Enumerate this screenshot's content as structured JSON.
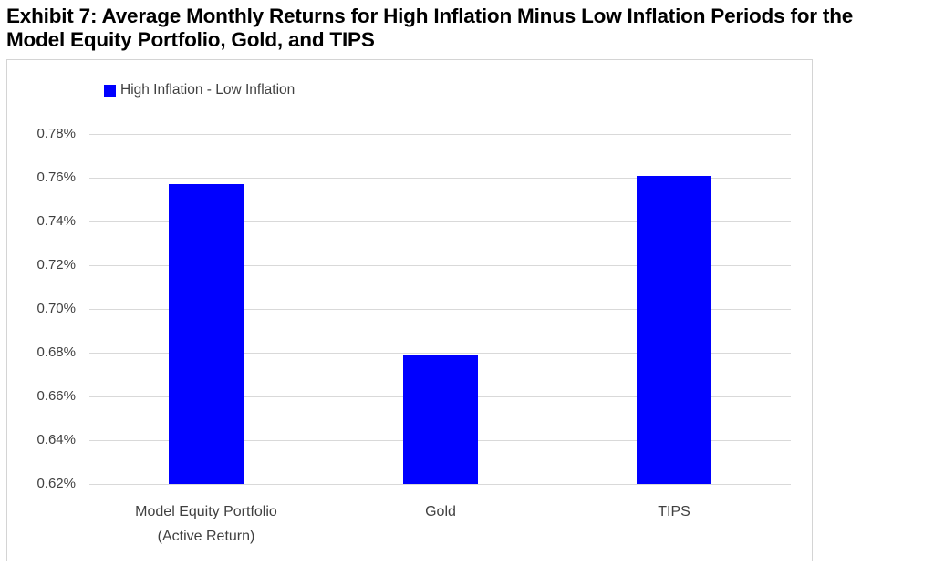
{
  "title_lines": [
    "Exhibit 7: Average Monthly Returns for High Inflation Minus Low Inflation Periods for the",
    "Model Equity Portfolio, Gold, and TIPS"
  ],
  "chart_data": {
    "type": "bar",
    "title": "Exhibit 7: Average Monthly Returns for High Inflation Minus Low Inflation Periods for the Model Equity Portfolio, Gold, and TIPS",
    "legend": [
      "High Inflation - Low Inflation"
    ],
    "legend_position": "top-left-inside",
    "categories": [
      "Model Equity Portfolio (Active Return)",
      "Gold",
      "TIPS"
    ],
    "category_lines": [
      [
        "Model Equity Portfolio",
        "(Active Return)"
      ],
      [
        "Gold"
      ],
      [
        "TIPS"
      ]
    ],
    "values_pct": [
      0.757,
      0.679,
      0.761
    ],
    "unit": "%",
    "xlabel": "",
    "ylabel": "",
    "ylim_pct": [
      0.62,
      0.78
    ],
    "ytick_step_pct": 0.02,
    "ytick_labels": [
      "0.78%",
      "0.76%",
      "0.74%",
      "0.72%",
      "0.70%",
      "0.68%",
      "0.66%",
      "0.64%",
      "0.62%"
    ],
    "grid": true,
    "bar_color": "#0000ff",
    "gridline_color": "#d9d9d9",
    "axis_text_color": "#404040"
  }
}
